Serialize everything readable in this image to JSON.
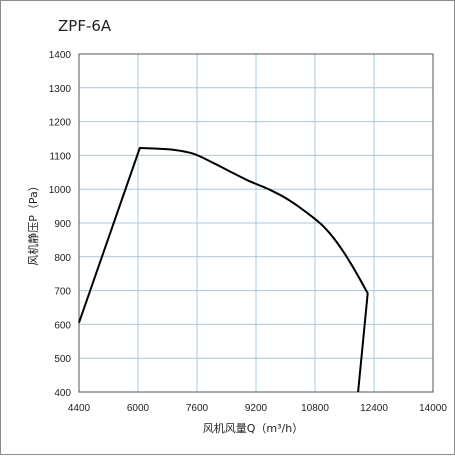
{
  "chart_data": {
    "type": "line",
    "title": "ZPF-6A",
    "xlabel": "风机风量Q（m³/h）",
    "ylabel": "风机静压P（Pa）",
    "xlim": [
      4400,
      14000
    ],
    "ylim": [
      400,
      1400
    ],
    "x_ticks": [
      4400,
      6000,
      7600,
      9200,
      10800,
      12400,
      14000
    ],
    "y_ticks": [
      400,
      500,
      600,
      700,
      800,
      900,
      1000,
      1100,
      1200,
      1300,
      1400
    ],
    "grid": true,
    "series": [
      {
        "color": "#000000",
        "points": [
          [
            4400,
            605
          ],
          [
            6050,
            1122
          ],
          [
            6500,
            1120
          ],
          [
            7000,
            1116
          ],
          [
            7500,
            1105
          ],
          [
            8000,
            1080
          ],
          [
            8500,
            1052
          ],
          [
            9000,
            1025
          ],
          [
            9500,
            1002
          ],
          [
            10000,
            974
          ],
          [
            10500,
            937
          ],
          [
            11000,
            893
          ],
          [
            11400,
            842
          ],
          [
            11800,
            775
          ],
          [
            12230,
            692
          ],
          [
            11970,
            400
          ]
        ]
      }
    ]
  }
}
